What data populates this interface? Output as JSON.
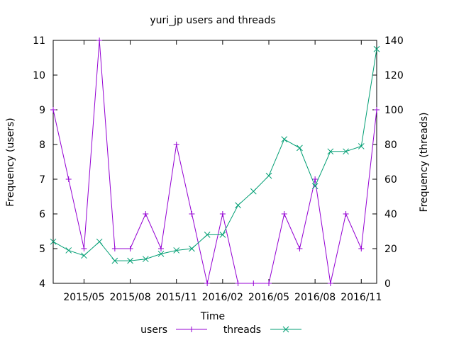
{
  "chart_data": {
    "type": "line",
    "title": "yuri_jp users and threads",
    "xlabel": "Time",
    "ylabel": "Frequency (users)",
    "y2label": "Frequency (threads)",
    "x": [
      "2015-03",
      "2015-04",
      "2015-05",
      "2015-06",
      "2015-07",
      "2015-08",
      "2015-09",
      "2015-10",
      "2015-11",
      "2015-12",
      "2016-01",
      "2016-02",
      "2016-03",
      "2016-04",
      "2016-05",
      "2016-06",
      "2016-07",
      "2016-08",
      "2016-09",
      "2016-10",
      "2016-11",
      "2016-12"
    ],
    "x_ticks": [
      "2015/05",
      "2015/08",
      "2015/11",
      "2016/02",
      "2016/05",
      "2016/08",
      "2016/11"
    ],
    "ylim": [
      4,
      11
    ],
    "y_ticks": [
      "4",
      "5",
      "6",
      "7",
      "8",
      "9",
      "10",
      "11"
    ],
    "y2lim": [
      0,
      140
    ],
    "y2_ticks": [
      "0",
      "20",
      "40",
      "60",
      "80",
      "100",
      "120",
      "140"
    ],
    "legend_position": "bottom",
    "grid": false,
    "series": [
      {
        "name": "users",
        "axis": "left",
        "color": "#9400d3",
        "marker": "plus",
        "values": [
          9,
          7,
          5,
          11,
          5,
          5,
          6,
          5,
          8,
          6,
          4,
          6,
          4,
          4,
          4,
          6,
          5,
          7,
          4,
          6,
          5,
          9
        ]
      },
      {
        "name": "threads",
        "axis": "right",
        "color": "#009e73",
        "marker": "cross",
        "values": [
          24,
          19,
          16,
          24,
          13,
          13,
          14,
          17,
          19,
          20,
          28,
          28,
          45,
          53,
          62,
          83,
          78,
          56,
          76,
          76,
          79,
          135
        ]
      }
    ]
  }
}
